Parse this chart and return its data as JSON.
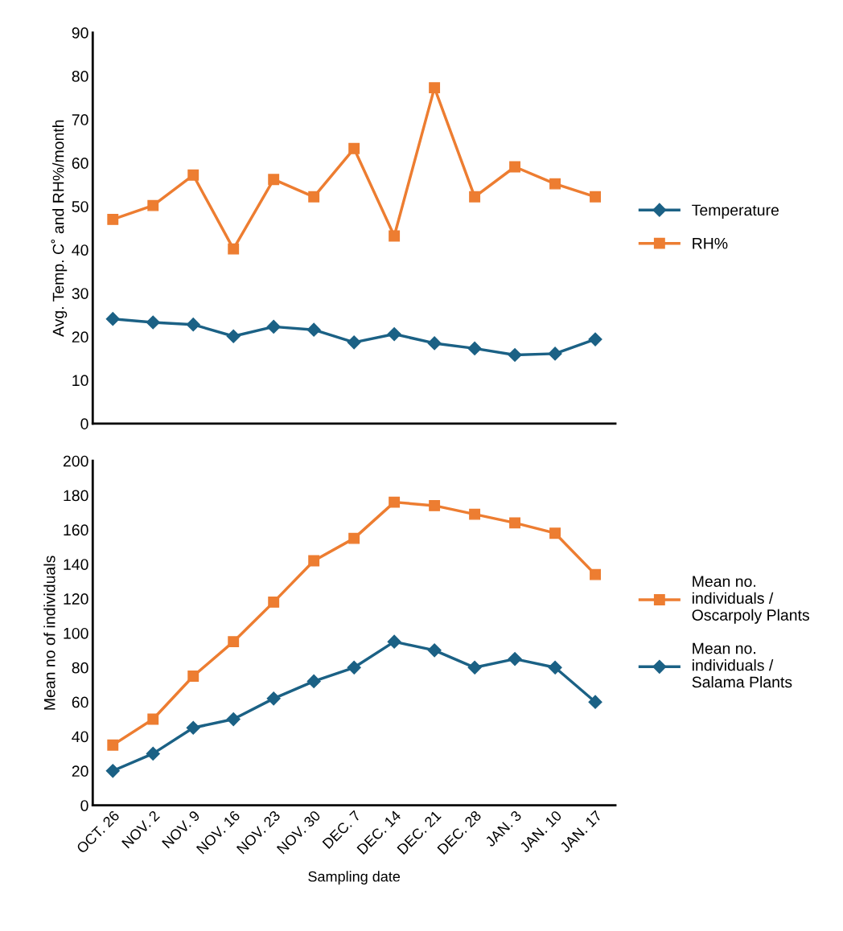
{
  "chart_data": [
    {
      "type": "line",
      "ylabel": "Avg. Temp. C˚ and RH%/month",
      "categories": [
        null,
        null,
        null,
        null,
        null,
        null,
        null,
        null,
        null,
        null,
        null,
        null,
        null
      ],
      "ylim": [
        0,
        90
      ],
      "yticks": [
        0,
        10,
        20,
        30,
        40,
        50,
        60,
        70,
        80,
        90
      ],
      "grid": false,
      "legend": "right",
      "tick_labels": "y",
      "series": [
        {
          "name": "Temperature",
          "color": "#1b6185",
          "marker": "diamond",
          "values": [
            24.1,
            23.3,
            22.8,
            20.1,
            22.3,
            21.6,
            18.7,
            20.6,
            18.5,
            17.3,
            15.8,
            16.1,
            19.4
          ]
        },
        {
          "name": "RH%",
          "color": "#ed7d31",
          "marker": "square",
          "values": [
            47,
            50.2,
            57.2,
            40.2,
            56.2,
            52.2,
            63.3,
            43.2,
            77.3,
            52.2,
            59.1,
            55.2,
            52.2
          ]
        }
      ]
    },
    {
      "type": "line",
      "ylabel": "Mean no of individuals",
      "xlabel": "Sampling date",
      "categories": [
        "OCT. 26",
        "NOV. 2",
        "NOV. 9",
        "NOV. 16",
        "NOV. 23",
        "NOV. 30",
        "DEC. 7",
        "DEC. 14",
        "DEC. 21",
        "DEC. 28",
        "JAN. 3",
        "JAN. 10",
        "JAN. 17"
      ],
      "ylim": [
        0,
        200
      ],
      "yticks": [
        0,
        20,
        40,
        60,
        80,
        100,
        120,
        140,
        160,
        180,
        200
      ],
      "grid": false,
      "legend": "right",
      "series": [
        {
          "name": "Mean no. individuals / Oscarpoly Plants",
          "color": "#ed7d31",
          "marker": "square",
          "values": [
            35,
            50,
            75,
            95,
            118,
            142,
            155,
            176,
            174,
            169,
            164,
            158,
            134
          ]
        },
        {
          "name": "Mean no. individuals / Salama Plants",
          "color": "#1b6185",
          "marker": "diamond",
          "values": [
            20,
            30,
            45,
            50,
            62,
            72,
            80,
            95,
            90,
            80,
            85,
            80,
            60
          ]
        }
      ]
    }
  ]
}
